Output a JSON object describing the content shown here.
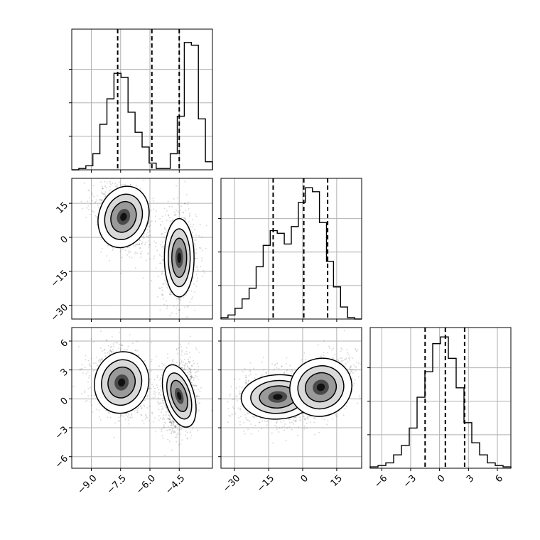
{
  "chart_data": {
    "type": "corner",
    "title": "",
    "parameters": [
      {
        "range": [
          -10.0,
          -2.8
        ],
        "ticks": [
          -9.0,
          -7.5,
          -6.0,
          -4.5
        ],
        "tick_labels": [
          "−9.0",
          "−7.5",
          "−6.0",
          "−4.5"
        ],
        "quantiles": [
          -7.65,
          -5.9,
          -4.5
        ]
      },
      {
        "range": [
          -36,
          26
        ],
        "ticks": [
          -30,
          -15,
          0,
          15
        ],
        "tick_labels": [
          "−30",
          "−15",
          "0",
          "15"
        ],
        "quantiles": [
          -13,
          0.5,
          11
        ]
      },
      {
        "range": [
          -7.2,
          7.4
        ],
        "ticks": [
          -6,
          -3,
          0,
          3,
          6
        ],
        "tick_labels": [
          "−6",
          "−3",
          "0",
          "3",
          "6"
        ],
        "quantiles": [
          -1.5,
          0.6,
          2.6
        ]
      }
    ],
    "histograms": [
      {
        "param": 0,
        "counts": [
          0.0,
          0.01,
          0.03,
          0.12,
          0.34,
          0.53,
          0.72,
          0.69,
          0.43,
          0.28,
          0.17,
          0.05,
          0.01,
          0.01,
          0.12,
          0.4,
          0.95,
          0.93,
          0.38,
          0.06
        ]
      },
      {
        "param": 1,
        "counts": [
          0.01,
          0.03,
          0.08,
          0.15,
          0.23,
          0.39,
          0.55,
          0.66,
          0.64,
          0.56,
          0.69,
          0.87,
          0.98,
          0.95,
          0.72,
          0.43,
          0.24,
          0.09,
          0.01,
          0.0
        ]
      },
      {
        "param": 2,
        "counts": [
          0.01,
          0.02,
          0.04,
          0.1,
          0.17,
          0.3,
          0.53,
          0.72,
          0.93,
          0.98,
          0.82,
          0.6,
          0.34,
          0.19,
          0.1,
          0.04,
          0.02,
          0.01
        ]
      }
    ],
    "density_2d": [
      {
        "x_param": 0,
        "y_param": 1,
        "modes": [
          {
            "cx": -7.35,
            "cy": 9,
            "sx": 0.55,
            "sy": 6,
            "rho": -0.3
          },
          {
            "cx": -4.5,
            "cy": -9,
            "sx": 0.33,
            "sy": 7.5,
            "rho": 0.0
          }
        ]
      },
      {
        "x_param": 0,
        "y_param": 2,
        "modes": [
          {
            "cx": -7.45,
            "cy": 1.7,
            "sx": 0.6,
            "sy": 1.4,
            "rho": -0.25
          },
          {
            "cx": -4.5,
            "cy": 0.3,
            "sx": 0.33,
            "sy": 1.45,
            "rho": 0.15
          }
        ]
      },
      {
        "x_param": 1,
        "y_param": 2,
        "modes": [
          {
            "cx": -11,
            "cy": 0.2,
            "sx": 7,
            "sy": 1.0,
            "rho": 0.1
          },
          {
            "cx": 8,
            "cy": 1.2,
            "sx": 6,
            "sy": 1.3,
            "rho": 0.45
          }
        ]
      }
    ],
    "grid": true
  }
}
